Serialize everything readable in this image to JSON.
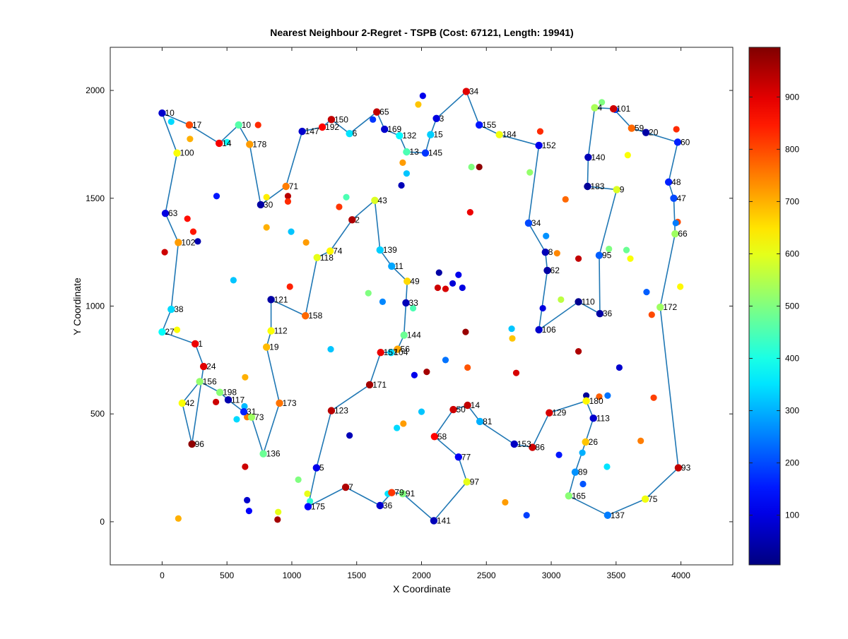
{
  "chart_data": {
    "type": "scatter",
    "title": "Nearest Neighbour 2-Regret - TSPB (Cost: 67121, Length: 19941)",
    "xlabel": "X Coordinate",
    "ylabel": "Y Coordinate",
    "xlim": [
      -400,
      4400
    ],
    "ylim": [
      -200,
      2200
    ],
    "xticks": [
      0,
      500,
      1000,
      1500,
      2000,
      2500,
      3000,
      3500,
      4000
    ],
    "yticks": [
      0,
      500,
      1000,
      1500,
      2000
    ],
    "grid": false,
    "colormap": "jet",
    "colorbar": {
      "min": 5,
      "max": 995,
      "ticks": [
        100,
        200,
        300,
        400,
        500,
        600,
        700,
        800,
        900
      ]
    },
    "tour_color": "#1f77b4",
    "tour": [
      {
        "id": "10",
        "x": 0,
        "y": 1895,
        "v": 80
      },
      {
        "id": "17",
        "x": 210,
        "y": 1840,
        "v": 800
      },
      {
        "id": "14",
        "x": 440,
        "y": 1755,
        "v": 880
      },
      {
        "id": "10",
        "x": 590,
        "y": 1840,
        "v": 460
      },
      {
        "id": "178",
        "x": 675,
        "y": 1750,
        "v": 720
      },
      {
        "id": "30",
        "x": 760,
        "y": 1470,
        "v": 40
      },
      {
        "id": "71",
        "x": 955,
        "y": 1555,
        "v": 750
      },
      {
        "id": "147",
        "x": 1080,
        "y": 1810,
        "v": 80
      },
      {
        "id": "192",
        "x": 1235,
        "y": 1830,
        "v": 870
      },
      {
        "id": "150",
        "x": 1305,
        "y": 1865,
        "v": 930
      },
      {
        "id": "6",
        "x": 1445,
        "y": 1800,
        "v": 350
      },
      {
        "id": "65",
        "x": 1655,
        "y": 1900,
        "v": 930
      },
      {
        "id": "169",
        "x": 1715,
        "y": 1820,
        "v": 80
      },
      {
        "id": "132",
        "x": 1830,
        "y": 1790,
        "v": 370
      },
      {
        "id": "13",
        "x": 1885,
        "y": 1715,
        "v": 450
      },
      {
        "id": "145",
        "x": 2030,
        "y": 1710,
        "v": 180
      },
      {
        "id": "15",
        "x": 2070,
        "y": 1795,
        "v": 330
      },
      {
        "id": "3",
        "x": 2115,
        "y": 1870,
        "v": 100
      },
      {
        "id": "34",
        "x": 2345,
        "y": 1995,
        "v": 900
      },
      {
        "id": "155",
        "x": 2445,
        "y": 1840,
        "v": 150
      },
      {
        "id": "184",
        "x": 2600,
        "y": 1795,
        "v": 610
      },
      {
        "id": "152",
        "x": 2905,
        "y": 1745,
        "v": 110
      },
      {
        "id": "34",
        "x": 2825,
        "y": 1385,
        "v": 200
      },
      {
        "id": "8",
        "x": 2955,
        "y": 1250,
        "v": 60
      },
      {
        "id": "62",
        "x": 2970,
        "y": 1165,
        "v": 40
      },
      {
        "id": "106",
        "x": 2905,
        "y": 890,
        "v": 80
      },
      {
        "id": "110",
        "x": 3210,
        "y": 1020,
        "v": 20
      },
      {
        "id": "36",
        "x": 3375,
        "y": 965,
        "v": 40
      },
      {
        "id": "95",
        "x": 3370,
        "y": 1235,
        "v": 220
      },
      {
        "id": "9",
        "x": 3505,
        "y": 1540,
        "v": 590
      },
      {
        "id": "183",
        "x": 3280,
        "y": 1555,
        "v": 30
      },
      {
        "id": "140",
        "x": 3285,
        "y": 1690,
        "v": 60
      },
      {
        "id": "4",
        "x": 3335,
        "y": 1920,
        "v": 540
      },
      {
        "id": "101",
        "x": 3480,
        "y": 1915,
        "v": 920
      },
      {
        "id": "59",
        "x": 3620,
        "y": 1825,
        "v": 770
      },
      {
        "id": "20",
        "x": 3730,
        "y": 1805,
        "v": 40
      },
      {
        "id": "60",
        "x": 3975,
        "y": 1760,
        "v": 160
      },
      {
        "id": "48",
        "x": 3905,
        "y": 1575,
        "v": 160
      },
      {
        "id": "47",
        "x": 3945,
        "y": 1500,
        "v": 200
      },
      {
        "id": "66",
        "x": 3955,
        "y": 1335,
        "v": 530
      },
      {
        "id": "172",
        "x": 3840,
        "y": 995,
        "v": 530
      },
      {
        "id": "93",
        "x": 3980,
        "y": 250,
        "v": 930
      },
      {
        "id": "75",
        "x": 3725,
        "y": 105,
        "v": 610
      },
      {
        "id": "137",
        "x": 3435,
        "y": 30,
        "v": 250
      },
      {
        "id": "165",
        "x": 3135,
        "y": 120,
        "v": 510
      },
      {
        "id": "89",
        "x": 3185,
        "y": 230,
        "v": 270
      },
      {
        "id": "26",
        "x": 3265,
        "y": 370,
        "v": 680
      },
      {
        "id": "113",
        "x": 3325,
        "y": 480,
        "v": 80
      },
      {
        "id": "180",
        "x": 3270,
        "y": 560,
        "v": 630
      },
      {
        "id": "129",
        "x": 2985,
        "y": 505,
        "v": 910
      },
      {
        "id": "86",
        "x": 2855,
        "y": 345,
        "v": 920
      },
      {
        "id": "153",
        "x": 2715,
        "y": 360,
        "v": 70
      },
      {
        "id": "81",
        "x": 2450,
        "y": 465,
        "v": 300
      },
      {
        "id": "14",
        "x": 2355,
        "y": 540,
        "v": 930
      },
      {
        "id": "50",
        "x": 2245,
        "y": 520,
        "v": 920
      },
      {
        "id": "58",
        "x": 2100,
        "y": 395,
        "v": 870
      },
      {
        "id": "77",
        "x": 2285,
        "y": 300,
        "v": 120
      },
      {
        "id": "97",
        "x": 2350,
        "y": 185,
        "v": 600
      },
      {
        "id": "141",
        "x": 2095,
        "y": 5,
        "v": 60
      },
      {
        "id": "91",
        "x": 1855,
        "y": 130,
        "v": 500
      },
      {
        "id": "79",
        "x": 1770,
        "y": 135,
        "v": 820
      },
      {
        "id": "36",
        "x": 1680,
        "y": 75,
        "v": 80
      },
      {
        "id": "7",
        "x": 1415,
        "y": 160,
        "v": 950
      },
      {
        "id": "175",
        "x": 1125,
        "y": 70,
        "v": 130
      },
      {
        "id": "5",
        "x": 1190,
        "y": 250,
        "v": 110
      },
      {
        "id": "123",
        "x": 1305,
        "y": 515,
        "v": 940
      },
      {
        "id": "171",
        "x": 1600,
        "y": 635,
        "v": 960
      },
      {
        "id": "157",
        "x": 1685,
        "y": 785,
        "v": 890
      },
      {
        "id": "104",
        "x": 1765,
        "y": 785,
        "v": 340
      },
      {
        "id": "56",
        "x": 1815,
        "y": 800,
        "v": 710
      },
      {
        "id": "144",
        "x": 1865,
        "y": 865,
        "v": 480
      },
      {
        "id": "33",
        "x": 1880,
        "y": 1015,
        "v": 60
      },
      {
        "id": "49",
        "x": 1890,
        "y": 1115,
        "v": 660
      },
      {
        "id": "11",
        "x": 1770,
        "y": 1185,
        "v": 290
      },
      {
        "id": "139",
        "x": 1680,
        "y": 1260,
        "v": 330
      },
      {
        "id": "43",
        "x": 1640,
        "y": 1490,
        "v": 590
      },
      {
        "id": "2",
        "x": 1465,
        "y": 1400,
        "v": 950
      },
      {
        "id": "74",
        "x": 1295,
        "y": 1255,
        "v": 630
      },
      {
        "id": "118",
        "x": 1195,
        "y": 1225,
        "v": 600
      },
      {
        "id": "158",
        "x": 1105,
        "y": 955,
        "v": 770
      },
      {
        "id": "121",
        "x": 840,
        "y": 1030,
        "v": 40
      },
      {
        "id": "112",
        "x": 840,
        "y": 885,
        "v": 620
      },
      {
        "id": "19",
        "x": 805,
        "y": 810,
        "v": 690
      },
      {
        "id": "173",
        "x": 905,
        "y": 550,
        "v": 760
      },
      {
        "id": "136",
        "x": 780,
        "y": 315,
        "v": 480
      },
      {
        "id": "73",
        "x": 690,
        "y": 485,
        "v": 530
      },
      {
        "id": "31",
        "x": 630,
        "y": 510,
        "v": 160
      },
      {
        "id": "117",
        "x": 510,
        "y": 565,
        "v": 50
      },
      {
        "id": "198",
        "x": 445,
        "y": 600,
        "v": 510
      },
      {
        "id": "156",
        "x": 290,
        "y": 650,
        "v": 520
      },
      {
        "id": "42",
        "x": 155,
        "y": 550,
        "v": 620
      },
      {
        "id": "96",
        "x": 230,
        "y": 360,
        "v": 980
      },
      {
        "id": "24",
        "x": 320,
        "y": 720,
        "v": 900
      },
      {
        "id": "1",
        "x": 255,
        "y": 825,
        "v": 890
      },
      {
        "id": "27",
        "x": 0,
        "y": 880,
        "v": 380
      },
      {
        "id": "38",
        "x": 70,
        "y": 985,
        "v": 340
      },
      {
        "id": "102",
        "x": 125,
        "y": 1295,
        "v": 720
      },
      {
        "id": "63",
        "x": 25,
        "y": 1430,
        "v": 100
      },
      {
        "id": "100",
        "x": 115,
        "y": 1710,
        "v": 620
      }
    ],
    "unvisited": [
      {
        "x": 70,
        "y": 1855,
        "v": 340
      },
      {
        "x": 215,
        "y": 1775,
        "v": 700
      },
      {
        "x": 500,
        "y": 1760,
        "v": 380
      },
      {
        "x": 740,
        "y": 1840,
        "v": 830
      },
      {
        "x": 420,
        "y": 1510,
        "v": 150
      },
      {
        "x": 195,
        "y": 1405,
        "v": 860
      },
      {
        "x": 240,
        "y": 1345,
        "v": 850
      },
      {
        "x": 275,
        "y": 1300,
        "v": 50
      },
      {
        "x": 20,
        "y": 1250,
        "v": 920
      },
      {
        "x": 805,
        "y": 1505,
        "v": 640
      },
      {
        "x": 970,
        "y": 1510,
        "v": 940
      },
      {
        "x": 970,
        "y": 1485,
        "v": 830
      },
      {
        "x": 805,
        "y": 1365,
        "v": 700
      },
      {
        "x": 995,
        "y": 1345,
        "v": 320
      },
      {
        "x": 1110,
        "y": 1295,
        "v": 720
      },
      {
        "x": 1365,
        "y": 1460,
        "v": 820
      },
      {
        "x": 1420,
        "y": 1505,
        "v": 450
      },
      {
        "x": 550,
        "y": 1120,
        "v": 320
      },
      {
        "x": 985,
        "y": 1090,
        "v": 840
      },
      {
        "x": 115,
        "y": 890,
        "v": 620
      },
      {
        "x": 640,
        "y": 670,
        "v": 700
      },
      {
        "x": 415,
        "y": 555,
        "v": 920
      },
      {
        "x": 635,
        "y": 535,
        "v": 310
      },
      {
        "x": 575,
        "y": 475,
        "v": 340
      },
      {
        "x": 655,
        "y": 485,
        "v": 750
      },
      {
        "x": 640,
        "y": 255,
        "v": 920
      },
      {
        "x": 1050,
        "y": 195,
        "v": 500
      },
      {
        "x": 1120,
        "y": 130,
        "v": 600
      },
      {
        "x": 1140,
        "y": 95,
        "v": 420
      },
      {
        "x": 655,
        "y": 100,
        "v": 80
      },
      {
        "x": 670,
        "y": 50,
        "v": 130
      },
      {
        "x": 895,
        "y": 45,
        "v": 600
      },
      {
        "x": 890,
        "y": 10,
        "v": 960
      },
      {
        "x": 125,
        "y": 15,
        "v": 700
      },
      {
        "x": 1300,
        "y": 800,
        "v": 320
      },
      {
        "x": 1445,
        "y": 400,
        "v": 60
      },
      {
        "x": 1590,
        "y": 1060,
        "v": 500
      },
      {
        "x": 1700,
        "y": 1020,
        "v": 260
      },
      {
        "x": 1625,
        "y": 1865,
        "v": 180
      },
      {
        "x": 1855,
        "y": 1665,
        "v": 720
      },
      {
        "x": 1885,
        "y": 1615,
        "v": 320
      },
      {
        "x": 1845,
        "y": 1560,
        "v": 60
      },
      {
        "x": 1975,
        "y": 1935,
        "v": 680
      },
      {
        "x": 2010,
        "y": 1975,
        "v": 110
      },
      {
        "x": 2135,
        "y": 1155,
        "v": 40
      },
      {
        "x": 2240,
        "y": 1105,
        "v": 90
      },
      {
        "x": 2285,
        "y": 1145,
        "v": 110
      },
      {
        "x": 2315,
        "y": 1085,
        "v": 100
      },
      {
        "x": 2125,
        "y": 1085,
        "v": 920
      },
      {
        "x": 2185,
        "y": 1080,
        "v": 910
      },
      {
        "x": 2375,
        "y": 1435,
        "v": 890
      },
      {
        "x": 2385,
        "y": 1645,
        "v": 500
      },
      {
        "x": 2445,
        "y": 1645,
        "v": 980
      },
      {
        "x": 1935,
        "y": 990,
        "v": 450
      },
      {
        "x": 2340,
        "y": 880,
        "v": 970
      },
      {
        "x": 2185,
        "y": 750,
        "v": 240
      },
      {
        "x": 2040,
        "y": 695,
        "v": 960
      },
      {
        "x": 1945,
        "y": 680,
        "v": 110
      },
      {
        "x": 2000,
        "y": 510,
        "v": 320
      },
      {
        "x": 1860,
        "y": 455,
        "v": 720
      },
      {
        "x": 1810,
        "y": 435,
        "v": 340
      },
      {
        "x": 1740,
        "y": 130,
        "v": 350
      },
      {
        "x": 2355,
        "y": 715,
        "v": 790
      },
      {
        "x": 2695,
        "y": 895,
        "v": 320
      },
      {
        "x": 2700,
        "y": 850,
        "v": 680
      },
      {
        "x": 2730,
        "y": 690,
        "v": 910
      },
      {
        "x": 2645,
        "y": 90,
        "v": 720
      },
      {
        "x": 2810,
        "y": 30,
        "v": 190
      },
      {
        "x": 3060,
        "y": 310,
        "v": 150
      },
      {
        "x": 3240,
        "y": 320,
        "v": 300
      },
      {
        "x": 3245,
        "y": 175,
        "v": 210
      },
      {
        "x": 3430,
        "y": 255,
        "v": 350
      },
      {
        "x": 3435,
        "y": 585,
        "v": 240
      },
      {
        "x": 3370,
        "y": 580,
        "v": 780
      },
      {
        "x": 3270,
        "y": 585,
        "v": 30
      },
      {
        "x": 3525,
        "y": 715,
        "v": 80
      },
      {
        "x": 3210,
        "y": 790,
        "v": 950
      },
      {
        "x": 3210,
        "y": 1220,
        "v": 930
      },
      {
        "x": 2935,
        "y": 990,
        "v": 100
      },
      {
        "x": 3075,
        "y": 1030,
        "v": 560
      },
      {
        "x": 3110,
        "y": 1495,
        "v": 770
      },
      {
        "x": 3045,
        "y": 1245,
        "v": 740
      },
      {
        "x": 2960,
        "y": 1325,
        "v": 270
      },
      {
        "x": 2835,
        "y": 1620,
        "v": 520
      },
      {
        "x": 2915,
        "y": 1810,
        "v": 830
      },
      {
        "x": 3390,
        "y": 1945,
        "v": 500
      },
      {
        "x": 3495,
        "y": 1910,
        "v": 200
      },
      {
        "x": 3590,
        "y": 1700,
        "v": 620
      },
      {
        "x": 3445,
        "y": 1265,
        "v": 500
      },
      {
        "x": 3580,
        "y": 1260,
        "v": 480
      },
      {
        "x": 3610,
        "y": 1220,
        "v": 620
      },
      {
        "x": 3735,
        "y": 1065,
        "v": 220
      },
      {
        "x": 3775,
        "y": 960,
        "v": 800
      },
      {
        "x": 3995,
        "y": 1090,
        "v": 630
      },
      {
        "x": 3975,
        "y": 1390,
        "v": 800
      },
      {
        "x": 3960,
        "y": 1385,
        "v": 250
      },
      {
        "x": 3965,
        "y": 1820,
        "v": 830
      },
      {
        "x": 3790,
        "y": 575,
        "v": 810
      },
      {
        "x": 3690,
        "y": 375,
        "v": 750
      }
    ]
  }
}
